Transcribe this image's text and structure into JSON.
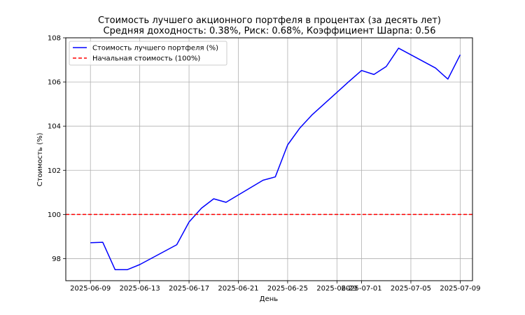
{
  "chart_data": {
    "type": "line",
    "title_line1": "Стоимость лучшего акционного портфеля в процентах (за десять лет)",
    "title_line2": "Средняя доходность: 0.38%, Риск: 0.68%, Коэффициент Шарпа: 0.56",
    "xlabel": "День",
    "ylabel": "Стоимость (%)",
    "ylim": [
      97.0,
      108.0
    ],
    "xlim": [
      "2025-06-07",
      "2025-07-10"
    ],
    "x_ticks": [
      "2025-06-09",
      "2025-06-13",
      "2025-06-17",
      "2025-06-21",
      "2025-06-25",
      "2025-06-29",
      "2025-07-01",
      "2025-07-05",
      "2025-07-09"
    ],
    "x_tick_labels": [
      "2025-06-09",
      "2025-06-13",
      "2025-06-17",
      "2025-06-21",
      "2025-06-25",
      "2025-06-29",
      "2025-07-01",
      "2025-07-05",
      "2025-07-09"
    ],
    "y_ticks": [
      98,
      100,
      102,
      104,
      106,
      108
    ],
    "y_tick_labels": [
      "98",
      "100",
      "102",
      "104",
      "106",
      "108"
    ],
    "grid": true,
    "legend_position": "top-left",
    "series": [
      {
        "name": "Стоимость лучшего портфеля (%)",
        "color": "#0000ff",
        "style": "solid",
        "x": [
          "2025-06-09",
          "2025-06-10",
          "2025-06-11",
          "2025-06-12",
          "2025-06-13",
          "2025-06-16",
          "2025-06-17",
          "2025-06-18",
          "2025-06-19",
          "2025-06-20",
          "2025-06-23",
          "2025-06-24",
          "2025-06-25",
          "2025-06-26",
          "2025-06-27",
          "2025-06-30",
          "2025-07-01",
          "2025-07-02",
          "2025-07-03",
          "2025-07-04",
          "2025-07-07",
          "2025-07-08",
          "2025-07-09"
        ],
        "values": [
          98.72,
          98.74,
          97.5,
          97.5,
          97.73,
          98.63,
          99.66,
          100.28,
          100.71,
          100.55,
          101.55,
          101.7,
          103.15,
          103.92,
          104.52,
          106.03,
          106.52,
          106.34,
          106.7,
          107.53,
          106.63,
          106.13,
          107.23
        ]
      },
      {
        "name": "Начальная стоимость (100%)",
        "color": "#ff0000",
        "style": "dashed",
        "x": [
          "2025-06-07",
          "2025-07-10"
        ],
        "values": [
          100,
          100
        ]
      }
    ]
  }
}
